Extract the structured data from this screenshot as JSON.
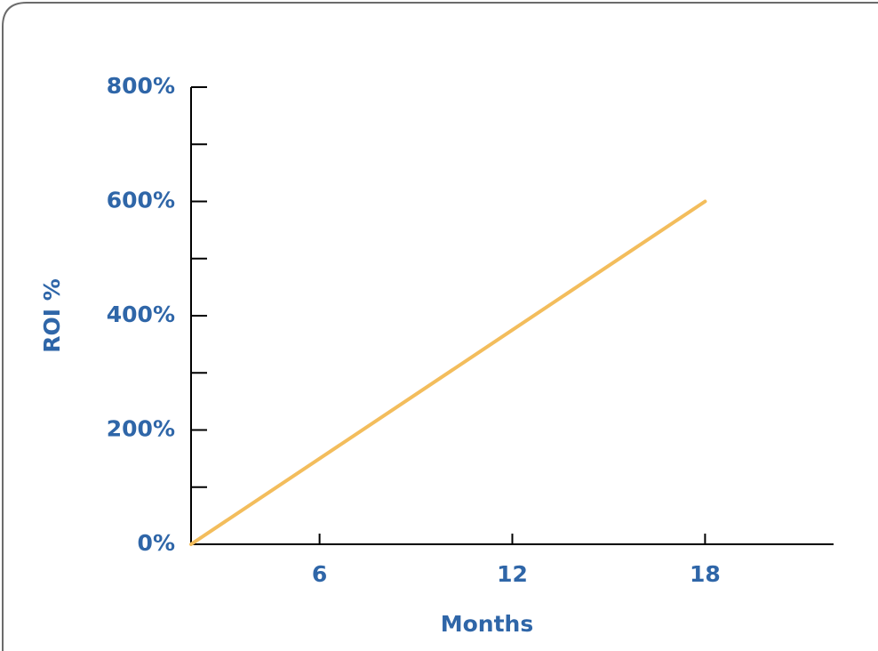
{
  "chart_data": {
    "type": "line",
    "x_label": "Months",
    "y_label": "ROI %",
    "x": [
      2,
      18
    ],
    "series": [
      {
        "color": "#f3bd5c",
        "values": [
          0,
          600
        ]
      }
    ],
    "xlim": [
      2,
      22
    ],
    "xticks": [
      6,
      12,
      18
    ],
    "ylim": [
      0,
      800
    ],
    "yticks": [
      {
        "value": 0,
        "label": "0%"
      },
      {
        "value": 200,
        "label": "200%"
      },
      {
        "value": 400,
        "label": "400%"
      },
      {
        "value": 600,
        "label": "600%"
      },
      {
        "value": 800,
        "label": "800%"
      }
    ],
    "yminor": [
      100,
      300,
      500,
      700
    ],
    "label_color": "#2f66a8"
  }
}
